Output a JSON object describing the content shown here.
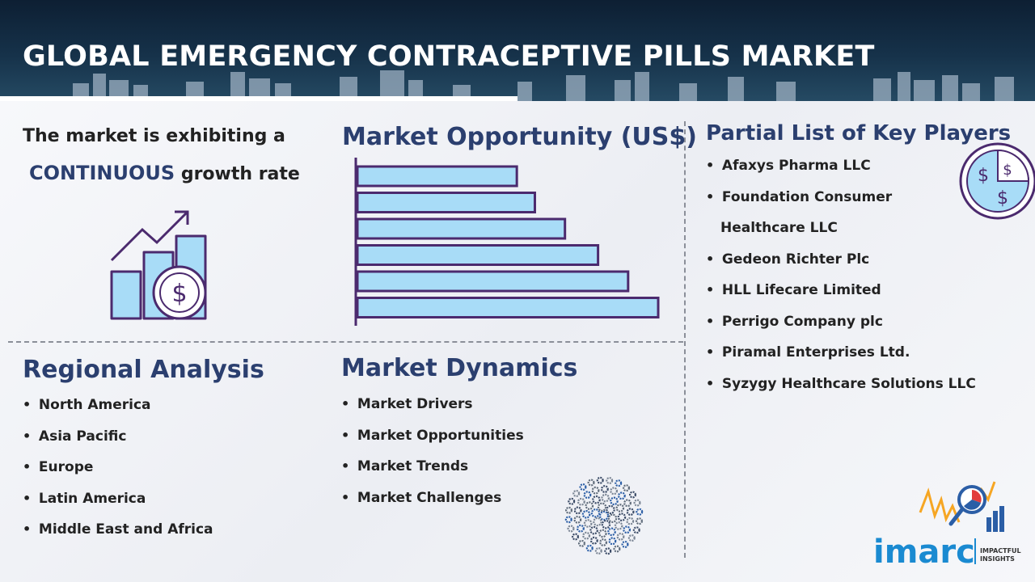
{
  "header": {
    "title": "GLOBAL EMERGENCY CONTRACEPTIVE PILLS MARKET"
  },
  "growth": {
    "line1": "The market is exhibiting a",
    "accent": "CONTINUOUS",
    "rest": " growth rate"
  },
  "opportunity": {
    "title": "Market Opportunity (US$)",
    "bar_fractions": [
      0.53,
      0.59,
      0.69,
      0.8,
      0.9,
      1.0
    ]
  },
  "players": {
    "title": "Partial List of Key Players",
    "items": [
      "Afaxys Pharma  LLC",
      "Foundation  Consumer",
      "Healthcare  LLC",
      "Gedeon Richter Plc",
      "HLL Lifecare Limited",
      "Perrigo Company  plc",
      "Piramal Enterprises Ltd.",
      "Syzygy Healthcare Solutions  LLC"
    ]
  },
  "regional": {
    "title": "Regional Analysis",
    "items": [
      "North America",
      "Asia Pacific",
      "Europe",
      "Latin America",
      "Middle East and Africa"
    ]
  },
  "dynamics": {
    "title": "Market Dynamics",
    "items": [
      "Market Drivers",
      "Market Opportunities",
      "Market Trends",
      "Market Challenges"
    ]
  },
  "bullet": "•",
  "logo": {
    "name": "imarc",
    "tagline1": "IMPACTFUL",
    "tagline2": "INSIGHTS"
  },
  "colors": {
    "navy": "#2b3f6f",
    "purple": "#4b2a6e",
    "bar_fill": "#a8dcf7",
    "header": "#16324a",
    "logo_blue": "#1a8ad1",
    "logo_orange": "#f6a623"
  },
  "icons": [
    "growth-chart-dollar-icon",
    "coin-pie-dollar-icon",
    "gear-cluster-icon",
    "magnifier-chart-icon"
  ]
}
